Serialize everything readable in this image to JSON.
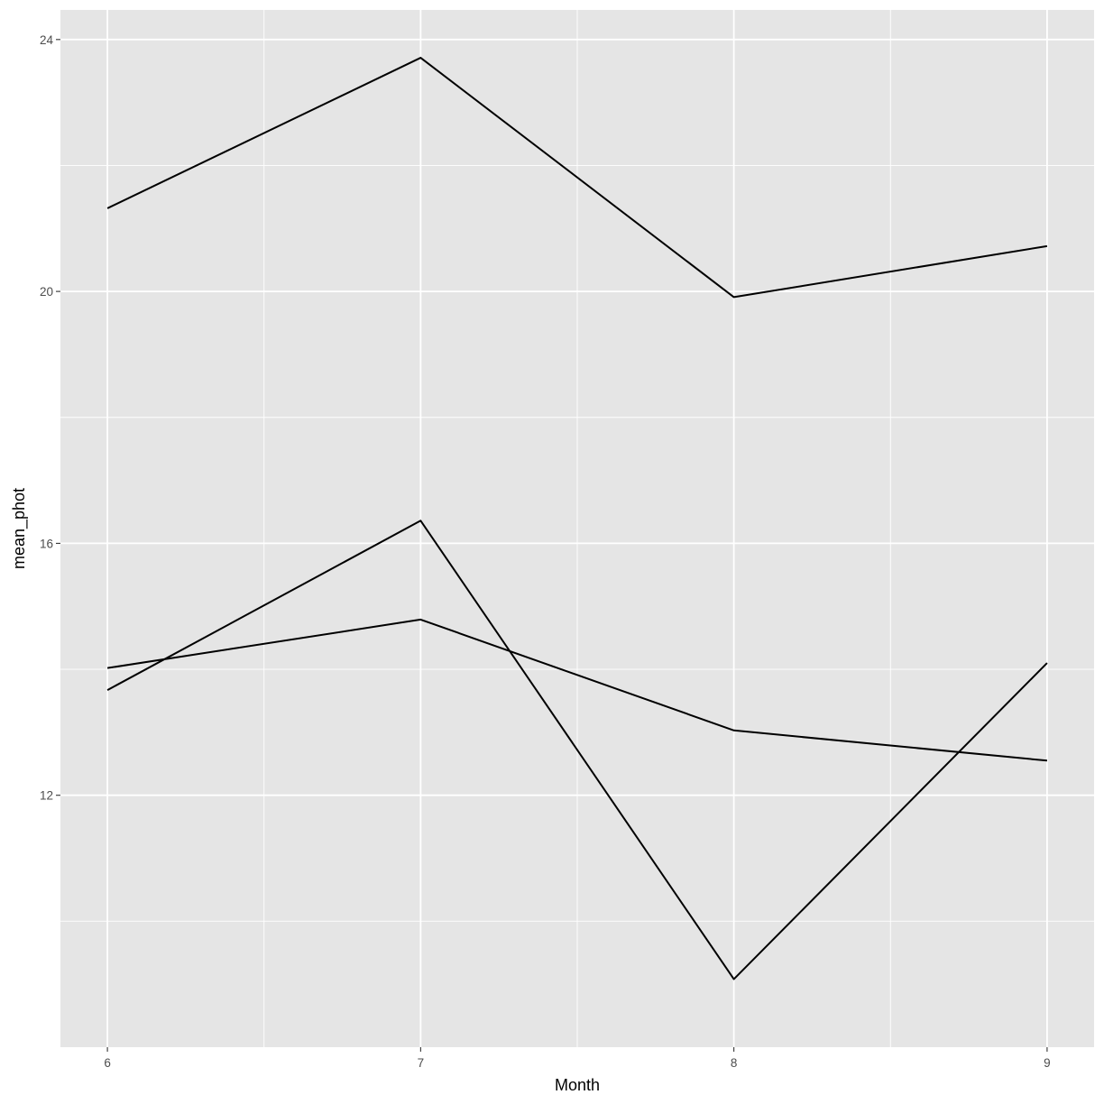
{
  "chart_data": {
    "type": "line",
    "title": "",
    "xlabel": "Month",
    "ylabel": "mean_phot",
    "x": [
      6,
      7,
      8,
      9
    ],
    "x_ticks": [
      6,
      7,
      8,
      9
    ],
    "y_ticks": [
      12,
      16,
      20,
      24
    ],
    "xlim": [
      5.85,
      9.15
    ],
    "ylim": [
      8.0,
      24.47
    ],
    "grid": true,
    "legend": "none",
    "colors": {
      "panel_background": "#e5e5e5",
      "grid": "#ffffff",
      "line": "#000000",
      "tick_text": "#4d4d4d"
    },
    "series": [
      {
        "values": [
          21.32,
          23.71,
          19.91,
          20.72
        ]
      },
      {
        "values": [
          13.67,
          16.36,
          9.08,
          14.1
        ]
      },
      {
        "values": [
          14.02,
          14.79,
          13.03,
          12.55
        ]
      }
    ]
  }
}
